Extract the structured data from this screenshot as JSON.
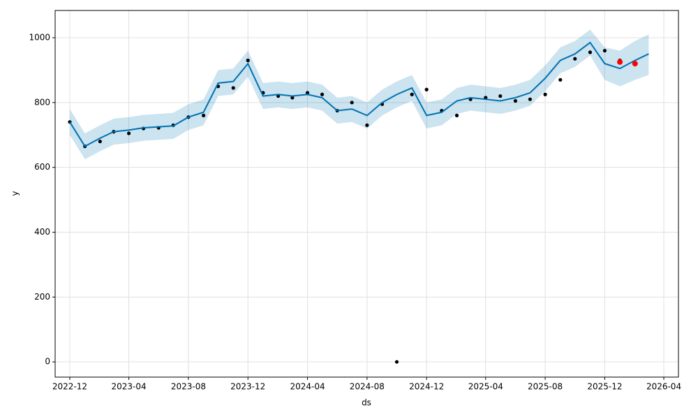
{
  "chart_data": {
    "type": "line",
    "xlabel": "ds",
    "ylabel": "y",
    "xlim": [
      "2022-11",
      "2026-05"
    ],
    "xticks": [
      "2022-12",
      "2023-04",
      "2023-08",
      "2023-12",
      "2024-04",
      "2024-08",
      "2024-12",
      "2025-04",
      "2025-08",
      "2025-12",
      "2026-04"
    ],
    "ylim": [
      -47,
      1084
    ],
    "yticks": [
      0,
      200,
      400,
      600,
      800,
      1000
    ],
    "grid": true,
    "x": [
      "2022-12",
      "2023-01",
      "2023-02",
      "2023-03",
      "2023-04",
      "2023-05",
      "2023-06",
      "2023-07",
      "2023-08",
      "2023-09",
      "2023-10",
      "2023-11",
      "2023-12",
      "2024-01",
      "2024-02",
      "2024-03",
      "2024-04",
      "2024-05",
      "2024-06",
      "2024-07",
      "2024-08",
      "2024-09",
      "2024-10",
      "2024-11",
      "2024-12",
      "2025-01",
      "2025-02",
      "2025-03",
      "2025-04",
      "2025-05",
      "2025-06",
      "2025-07",
      "2025-08",
      "2025-09",
      "2025-10",
      "2025-11",
      "2025-12",
      "2026-01",
      "2026-02",
      "2026-03"
    ],
    "forecast": {
      "color": "#0072b2",
      "values": [
        740,
        665,
        690,
        710,
        715,
        722,
        725,
        728,
        755,
        770,
        860,
        865,
        920,
        820,
        825,
        820,
        825,
        815,
        775,
        780,
        760,
        800,
        825,
        845,
        760,
        770,
        805,
        815,
        810,
        805,
        815,
        830,
        875,
        930,
        950,
        985,
        920,
        905,
        930,
        950
      ]
    },
    "interval": {
      "color": "#0072b2",
      "lower": [
        700,
        625,
        650,
        670,
        675,
        682,
        685,
        688,
        715,
        730,
        820,
        825,
        880,
        780,
        785,
        780,
        785,
        775,
        735,
        740,
        720,
        760,
        785,
        805,
        720,
        730,
        765,
        775,
        770,
        765,
        775,
        790,
        835,
        890,
        910,
        945,
        870,
        850,
        870,
        885
      ],
      "upper": [
        780,
        705,
        730,
        750,
        755,
        762,
        765,
        768,
        795,
        810,
        900,
        905,
        960,
        860,
        865,
        860,
        865,
        855,
        815,
        820,
        800,
        840,
        865,
        885,
        800,
        810,
        845,
        855,
        850,
        845,
        855,
        870,
        915,
        970,
        990,
        1025,
        970,
        960,
        990,
        1010
      ]
    },
    "observed": {
      "color": "#000000",
      "x": [
        "2022-12",
        "2023-01",
        "2023-02",
        "2023-03",
        "2023-04",
        "2023-05",
        "2023-06",
        "2023-07",
        "2023-08",
        "2023-09",
        "2023-10",
        "2023-11",
        "2023-12",
        "2024-01",
        "2024-02",
        "2024-03",
        "2024-04",
        "2024-05",
        "2024-06",
        "2024-07",
        "2024-08",
        "2024-09",
        "2024-10",
        "2024-11",
        "2024-12",
        "2025-01",
        "2025-02",
        "2025-03",
        "2025-04",
        "2025-05",
        "2025-06",
        "2025-07",
        "2025-08",
        "2025-09",
        "2025-10",
        "2025-11",
        "2025-12",
        "2026-01"
      ],
      "values": [
        740,
        665,
        680,
        710,
        705,
        720,
        722,
        730,
        755,
        760,
        850,
        845,
        930,
        830,
        820,
        815,
        830,
        825,
        775,
        800,
        730,
        795,
        0,
        825,
        840,
        775,
        760,
        810,
        815,
        820,
        805,
        810,
        825,
        870,
        935,
        955,
        960,
        930
      ]
    },
    "highlight": {
      "color": "#ff0000",
      "x": [
        "2026-01",
        "2026-02"
      ],
      "values": [
        925,
        920
      ]
    }
  }
}
